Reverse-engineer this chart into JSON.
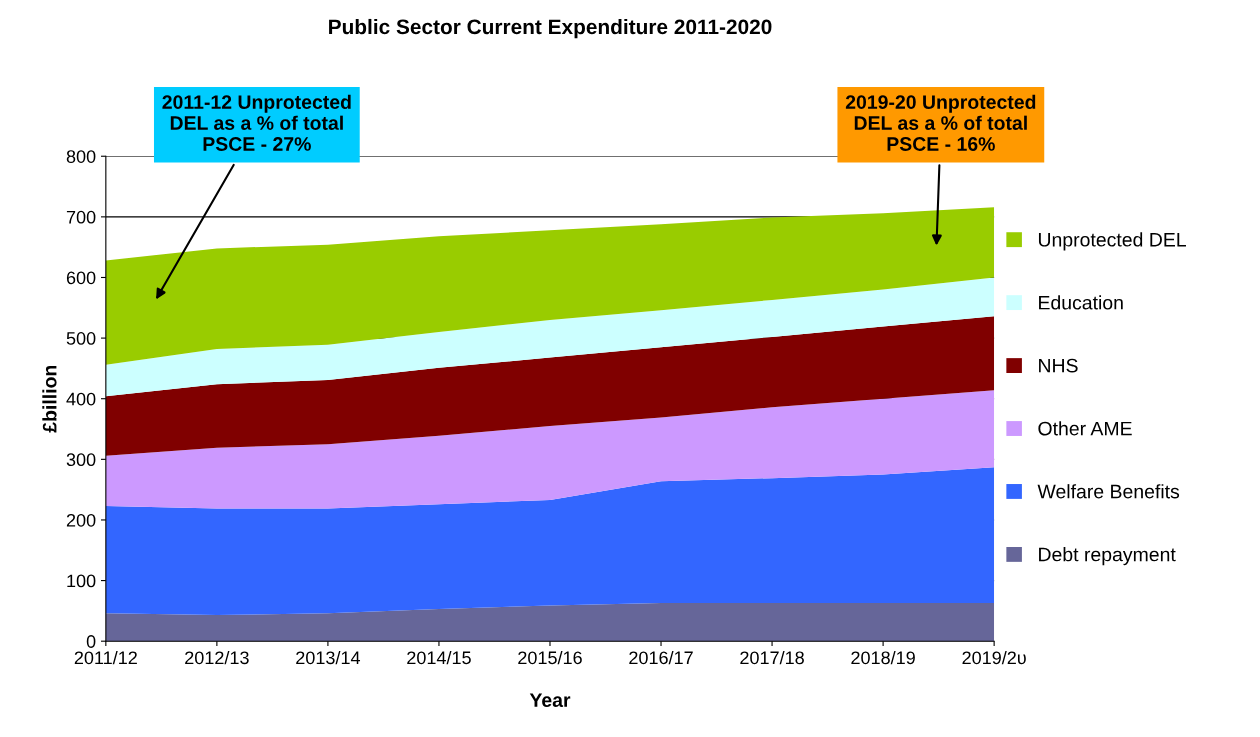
{
  "chart_data": {
    "type": "area",
    "stacked": true,
    "title": "Public Sector Current Expenditure 2011-2020",
    "xlabel": "Year",
    "ylabel": "£billion",
    "categories": [
      "2011/12",
      "2012/13",
      "2013/14",
      "2014/15",
      "2015/16",
      "2016/17",
      "2017/18",
      "2018/19",
      "2019/2υ"
    ],
    "series": [
      {
        "name": "Debt repayment",
        "color": "#666699",
        "values": [
          46,
          43,
          46,
          53,
          59,
          63,
          63,
          63,
          63
        ]
      },
      {
        "name": "Welfare Benefits",
        "color": "#3366ff",
        "values": [
          177,
          176,
          173,
          173,
          174,
          201,
          206,
          212,
          224
        ]
      },
      {
        "name": "Other AME",
        "color": "#cc99ff",
        "values": [
          83,
          100,
          106,
          113,
          122,
          105,
          117,
          125,
          127
        ]
      },
      {
        "name": "NHS",
        "color": "#800000",
        "values": [
          98,
          105,
          106,
          112,
          113,
          116,
          116,
          119,
          122
        ]
      },
      {
        "name": "Education",
        "color": "#ccffff",
        "values": [
          52,
          58,
          58,
          59,
          62,
          61,
          61,
          61,
          64
        ]
      },
      {
        "name": "Unprotected DEL",
        "color": "#99cc00",
        "values": [
          172,
          166,
          165,
          158,
          148,
          142,
          136,
          126,
          116
        ]
      }
    ],
    "ylim": [
      0,
      800
    ],
    "yticks": [
      0,
      100,
      200,
      300,
      400,
      500,
      600,
      700,
      800
    ],
    "grid": "y",
    "legend": "right",
    "annotations": [
      "2011-12 Unprotected\nDEL as a % of total\nPSCE - 27%",
      "2019-20 Unprotected\nDEL as a % of total\nPSCE - 16%"
    ]
  }
}
